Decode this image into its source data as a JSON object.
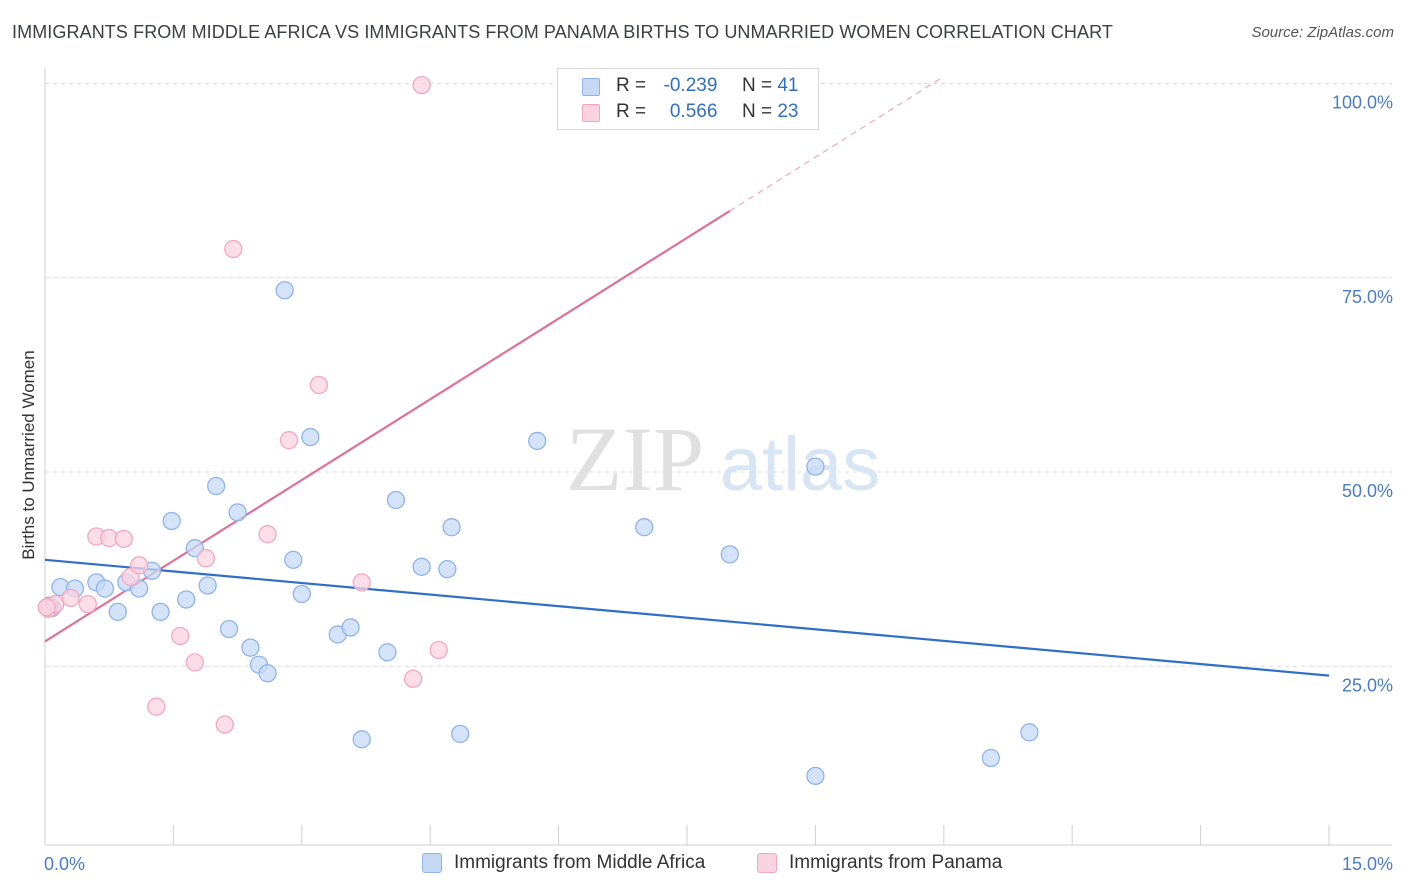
{
  "header": {
    "title": "IMMIGRANTS FROM MIDDLE AFRICA VS IMMIGRANTS FROM PANAMA BIRTHS TO UNMARRIED WOMEN CORRELATION CHART",
    "source": "Source: ZipAtlas.com"
  },
  "watermark": {
    "zip": "ZIP",
    "atlas": "atlas"
  },
  "legend": {
    "r_label": "R =",
    "n_label": "N =",
    "series": [
      {
        "r": "-0.239",
        "n": "41"
      },
      {
        "r": "0.566",
        "n": "23"
      }
    ]
  },
  "chart_data": {
    "type": "scatter",
    "title": "IMMIGRANTS FROM MIDDLE AFRICA VS IMMIGRANTS FROM PANAMA BIRTHS TO UNMARRIED WOMEN CORRELATION CHART",
    "xlabel": "",
    "ylabel": "Births to Unmarried Women",
    "x_unit": "%",
    "xlim": [
      0,
      15
    ],
    "ylim": [
      2,
      102
    ],
    "x_tick_labels": [
      "0.0%",
      "15.0%"
    ],
    "y_ticks": [
      25,
      50,
      75,
      100
    ],
    "y_tick_labels": [
      "25.0%",
      "50.0%",
      "75.0%",
      "100.0%"
    ],
    "grid": true,
    "legend_position": "top-center",
    "series": [
      {
        "name": "Immigrants from Middle Africa",
        "color": "#8fb4ec",
        "fill": "#c5d9f5",
        "line_color": "#2f6fc6",
        "trend": {
          "x": [
            0,
            15
          ],
          "y": [
            38.7,
            23.8
          ]
        },
        "points": [
          [
            0.08,
            32.5
          ],
          [
            0.18,
            35.2
          ],
          [
            0.35,
            35.0
          ],
          [
            0.6,
            35.8
          ],
          [
            0.7,
            35.0
          ],
          [
            0.85,
            32.0
          ],
          [
            0.95,
            35.8
          ],
          [
            1.1,
            35.0
          ],
          [
            1.25,
            37.3
          ],
          [
            1.35,
            32.0
          ],
          [
            1.48,
            43.7
          ],
          [
            1.65,
            33.6
          ],
          [
            1.75,
            40.2
          ],
          [
            1.9,
            35.4
          ],
          [
            2.0,
            48.2
          ],
          [
            2.15,
            29.8
          ],
          [
            2.25,
            44.8
          ],
          [
            2.4,
            27.4
          ],
          [
            2.5,
            25.2
          ],
          [
            2.6,
            24.1
          ],
          [
            2.8,
            73.4
          ],
          [
            2.9,
            38.7
          ],
          [
            3.0,
            34.3
          ],
          [
            3.1,
            54.5
          ],
          [
            3.42,
            29.1
          ],
          [
            3.57,
            30.0
          ],
          [
            3.7,
            15.6
          ],
          [
            4.0,
            26.8
          ],
          [
            4.1,
            46.4
          ],
          [
            4.4,
            37.8
          ],
          [
            4.7,
            37.5
          ],
          [
            4.75,
            42.9
          ],
          [
            4.85,
            16.3
          ],
          [
            5.75,
            54.0
          ],
          [
            7.0,
            42.9
          ],
          [
            8.0,
            39.4
          ],
          [
            9.0,
            50.7
          ],
          [
            9.0,
            10.9
          ],
          [
            11.05,
            13.2
          ],
          [
            11.5,
            16.5
          ],
          [
            0.05,
            32.8
          ]
        ]
      },
      {
        "name": "Immigrants from Panama",
        "color": "#f3a8c0",
        "fill": "#f9d3e0",
        "line_color": "#e0709a",
        "trend": {
          "x": [
            0,
            8
          ],
          "y": [
            28.2,
            83.6
          ]
        },
        "trend_extension": {
          "x": [
            8,
            10.5
          ],
          "y": [
            83.6,
            100.9
          ]
        },
        "points": [
          [
            0.04,
            32.4
          ],
          [
            0.12,
            33.0
          ],
          [
            0.3,
            33.8
          ],
          [
            0.5,
            33.0
          ],
          [
            0.6,
            41.7
          ],
          [
            0.75,
            41.5
          ],
          [
            0.92,
            41.4
          ],
          [
            1.0,
            36.5
          ],
          [
            1.1,
            38.0
          ],
          [
            1.3,
            19.8
          ],
          [
            1.58,
            28.9
          ],
          [
            1.75,
            25.5
          ],
          [
            1.88,
            38.9
          ],
          [
            2.1,
            17.5
          ],
          [
            2.2,
            78.7
          ],
          [
            2.6,
            42.0
          ],
          [
            2.85,
            54.1
          ],
          [
            3.2,
            61.2
          ],
          [
            3.7,
            35.8
          ],
          [
            4.3,
            23.4
          ],
          [
            4.6,
            27.1
          ],
          [
            4.4,
            99.8
          ],
          [
            0.02,
            32.6
          ]
        ]
      }
    ]
  }
}
